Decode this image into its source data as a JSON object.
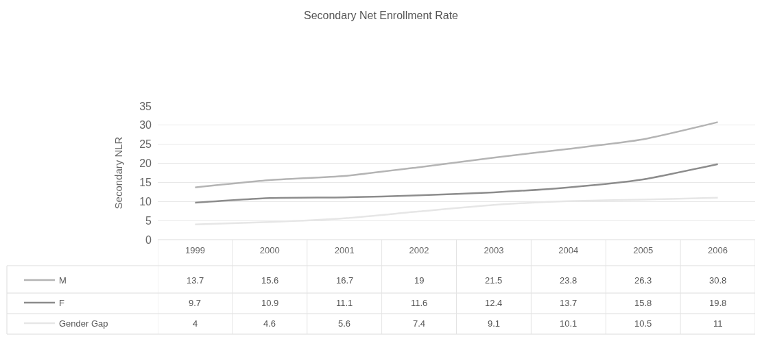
{
  "chart_data": {
    "type": "line",
    "title": "Secondary Net Enrollment Rate",
    "ylabel": "Secondary NLR",
    "categories": [
      "1999",
      "2000",
      "2001",
      "2002",
      "2003",
      "2004",
      "2005",
      "2006"
    ],
    "series": [
      {
        "name": "M",
        "color": "#b4b4b4",
        "values": [
          13.7,
          15.6,
          16.7,
          19,
          21.5,
          23.8,
          26.3,
          30.8
        ]
      },
      {
        "name": "F",
        "color": "#8c8c8c",
        "values": [
          9.7,
          10.9,
          11.1,
          11.6,
          12.4,
          13.7,
          15.8,
          19.8
        ]
      },
      {
        "name": "Gender Gap",
        "color": "#e6e6e6",
        "values": [
          4,
          4.6,
          5.6,
          7.4,
          9.1,
          10.1,
          10.5,
          11
        ]
      }
    ],
    "ylim": [
      0,
      35
    ],
    "yticks": [
      0,
      5,
      10,
      15,
      20,
      25,
      30,
      35
    ],
    "grid": "y",
    "legend": "bottom left",
    "data_labels": true,
    "line_style": "solid",
    "marker": "none"
  }
}
